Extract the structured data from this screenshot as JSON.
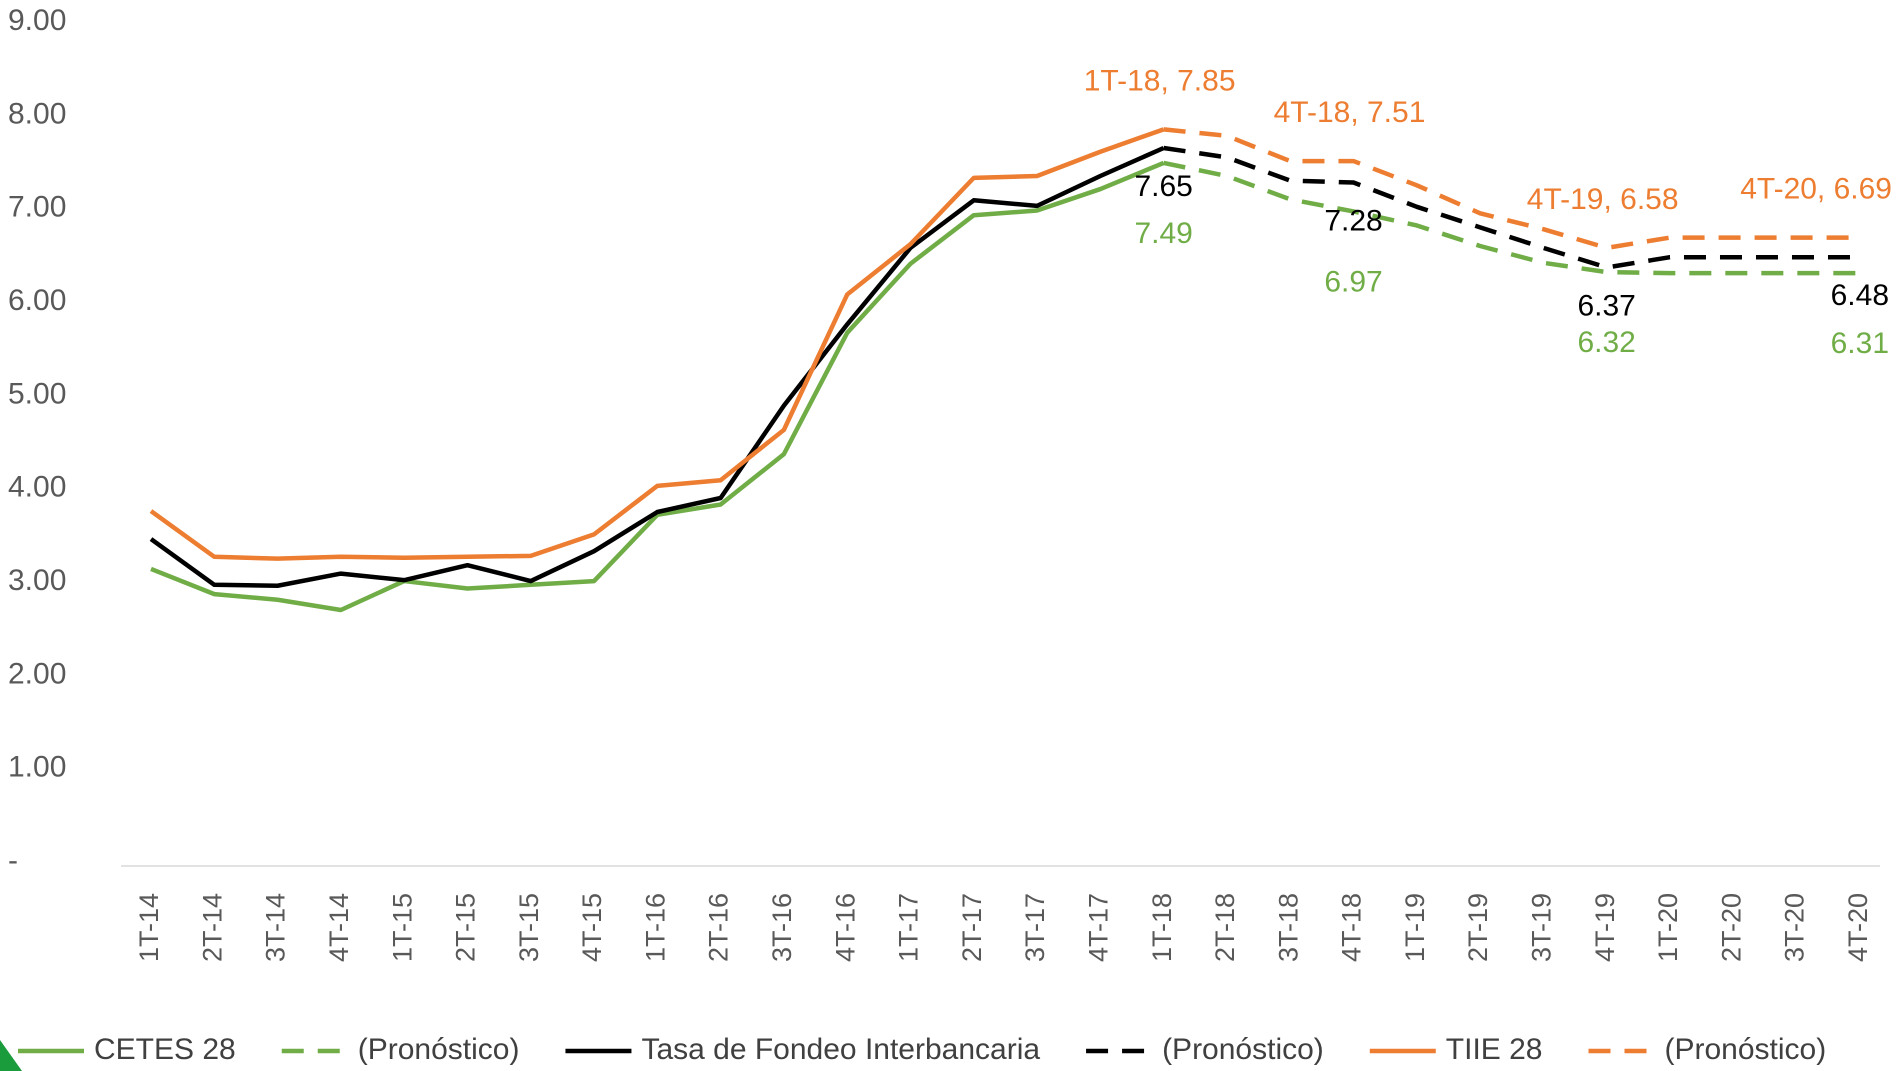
{
  "chart_data": {
    "type": "line",
    "categories": [
      "1T-14",
      "2T-14",
      "3T-14",
      "4T-14",
      "1T-15",
      "2T-15",
      "3T-15",
      "4T-15",
      "1T-16",
      "2T-16",
      "3T-16",
      "4T-16",
      "1T-17",
      "2T-17",
      "3T-17",
      "4T-17",
      "1T-18",
      "2T-18",
      "3T-18",
      "4T-18",
      "1T-19",
      "2T-19",
      "3T-19",
      "4T-19",
      "1T-20",
      "2T-20",
      "3T-20",
      "4T-20"
    ],
    "ylim": [
      0,
      9
    ],
    "yticks": [
      {
        "value": 0,
        "label": "-"
      },
      {
        "value": 1,
        "label": "1.00"
      },
      {
        "value": 2,
        "label": "2.00"
      },
      {
        "value": 3,
        "label": "3.00"
      },
      {
        "value": 4,
        "label": "4.00"
      },
      {
        "value": 5,
        "label": "5.00"
      },
      {
        "value": 6,
        "label": "6.00"
      },
      {
        "value": 7,
        "label": "7.00"
      },
      {
        "value": 8,
        "label": "8.00"
      },
      {
        "value": 9,
        "label": "9.00"
      }
    ],
    "grid": false,
    "legend": "bottom",
    "series": [
      {
        "name": "CETES 28",
        "color": "#70ad47",
        "dashed": false,
        "values": [
          3.14,
          2.87,
          2.81,
          2.7,
          3.01,
          2.93,
          2.97,
          3.01,
          3.72,
          3.83,
          4.37,
          5.67,
          6.41,
          6.93,
          6.98,
          7.21,
          7.49,
          null,
          null,
          null,
          null,
          null,
          null,
          null,
          null,
          null,
          null,
          null
        ]
      },
      {
        "name": "(Pronóstico)",
        "color": "#70ad47",
        "dashed": true,
        "values": [
          null,
          null,
          null,
          null,
          null,
          null,
          null,
          null,
          null,
          null,
          null,
          null,
          null,
          null,
          null,
          null,
          7.49,
          7.35,
          7.1,
          6.97,
          6.82,
          6.6,
          6.42,
          6.32,
          6.31,
          6.31,
          6.31,
          6.31
        ],
        "value_labels": [
          null,
          null,
          null,
          null,
          null,
          null,
          null,
          null,
          null,
          null,
          null,
          null,
          null,
          null,
          null,
          null,
          "7.49",
          null,
          null,
          "6.97",
          null,
          null,
          null,
          "6.32",
          null,
          null,
          null,
          "6.31"
        ]
      },
      {
        "name": "Tasa de Fondeo Interbancaria",
        "color": "#000000",
        "dashed": false,
        "values": [
          3.46,
          2.97,
          2.96,
          3.09,
          3.02,
          3.18,
          3.01,
          3.33,
          3.75,
          3.9,
          4.89,
          5.76,
          6.58,
          7.09,
          7.03,
          7.35,
          7.65,
          null,
          null,
          null,
          null,
          null,
          null,
          null,
          null,
          null,
          null,
          null
        ]
      },
      {
        "name": "(Pronóstico)",
        "color": "#000000",
        "dashed": true,
        "values": [
          null,
          null,
          null,
          null,
          null,
          null,
          null,
          null,
          null,
          null,
          null,
          null,
          null,
          null,
          null,
          null,
          7.65,
          7.55,
          7.3,
          7.28,
          7.02,
          6.8,
          6.58,
          6.37,
          6.48,
          6.48,
          6.48,
          6.48
        ],
        "value_labels": [
          null,
          null,
          null,
          null,
          null,
          null,
          null,
          null,
          null,
          null,
          null,
          null,
          null,
          null,
          null,
          null,
          "7.65",
          null,
          null,
          "7.28",
          null,
          null,
          null,
          "6.37",
          null,
          null,
          null,
          "6.48"
        ]
      },
      {
        "name": "TIIE 28",
        "color": "#ed7d31",
        "dashed": false,
        "values": [
          3.76,
          3.27,
          3.25,
          3.27,
          3.26,
          3.27,
          3.28,
          3.51,
          4.03,
          4.09,
          4.63,
          6.08,
          6.62,
          7.33,
          7.35,
          7.61,
          7.85,
          null,
          null,
          null,
          null,
          null,
          null,
          null,
          null,
          null,
          null,
          null
        ]
      },
      {
        "name": "(Pronóstico)",
        "color": "#ed7d31",
        "dashed": true,
        "values": [
          null,
          null,
          null,
          null,
          null,
          null,
          null,
          null,
          null,
          null,
          null,
          null,
          null,
          null,
          null,
          null,
          7.85,
          7.78,
          7.51,
          7.51,
          7.25,
          6.95,
          6.78,
          6.58,
          6.69,
          6.69,
          6.69,
          6.69
        ],
        "value_labels": [
          null,
          null,
          null,
          null,
          null,
          null,
          null,
          null,
          null,
          null,
          null,
          null,
          null,
          null,
          null,
          null,
          "1T-18, 7.85",
          null,
          null,
          "4T-18, 7.51",
          null,
          null,
          null,
          "4T-19, 6.58",
          null,
          null,
          null,
          "4T-20, 6.69"
        ]
      }
    ]
  }
}
